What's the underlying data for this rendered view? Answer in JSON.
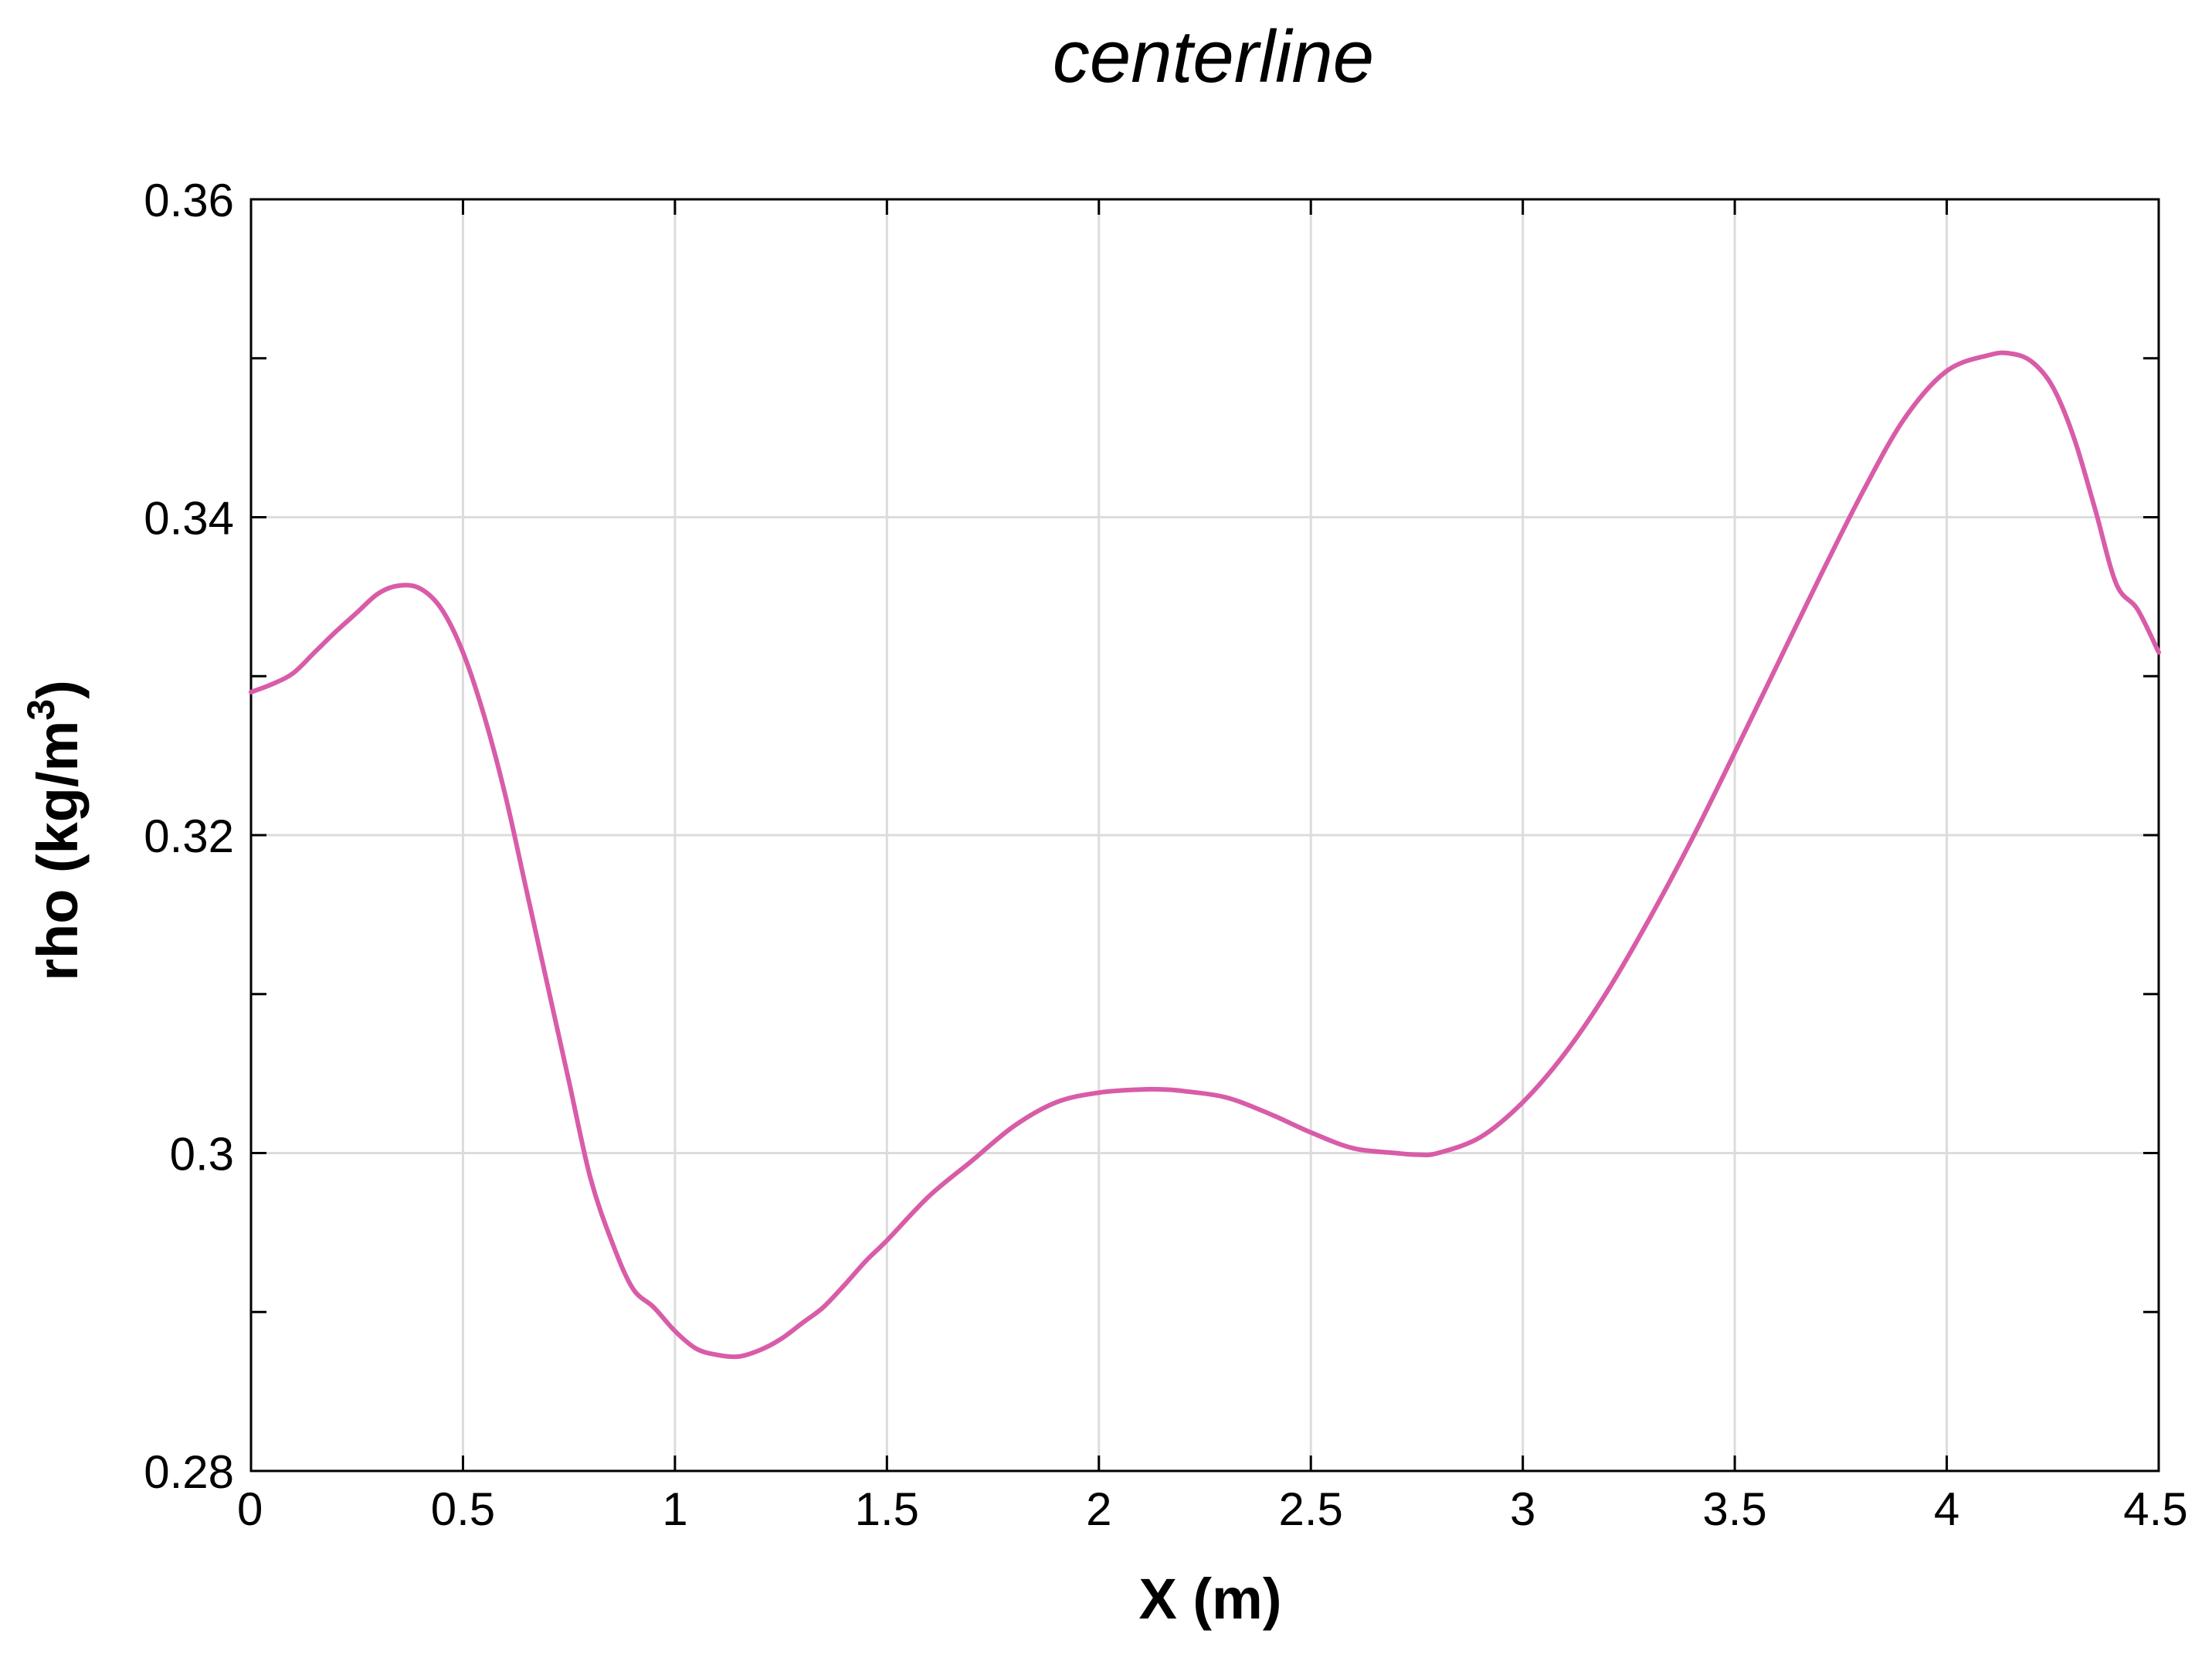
{
  "chart_data": {
    "type": "line",
    "title": "centerline",
    "xlabel": "X (m)",
    "ylabel": {
      "main": "rho (kg/m",
      "superscript": "3",
      "suffix": ")"
    },
    "xlim": [
      0,
      4.5
    ],
    "ylim": [
      0.28,
      0.36
    ],
    "x_ticks": [
      0,
      0.5,
      1,
      1.5,
      2,
      2.5,
      3,
      3.5,
      4,
      4.5
    ],
    "x_tick_labels": [
      "0",
      "0.5",
      "1",
      "1.5",
      "2",
      "2.5",
      "3",
      "3.5",
      "4",
      "4.5"
    ],
    "y_ticks": [
      0.28,
      0.29,
      0.3,
      0.31,
      0.32,
      0.33,
      0.34,
      0.35,
      0.36
    ],
    "y_tick_labels": [
      "0.28",
      "",
      "0.3",
      "",
      "0.32",
      "",
      "0.34",
      "",
      "0.36"
    ],
    "grid": true,
    "series": [
      {
        "color": "#d85ca8",
        "x": [
          0,
          0.05,
          0.1,
          0.15,
          0.2,
          0.25,
          0.3,
          0.35,
          0.4,
          0.45,
          0.5,
          0.55,
          0.6,
          0.65,
          0.7,
          0.75,
          0.8,
          0.85,
          0.9,
          0.95,
          1.0,
          1.05,
          1.1,
          1.15,
          1.2,
          1.25,
          1.3,
          1.35,
          1.4,
          1.45,
          1.5,
          1.6,
          1.7,
          1.8,
          1.9,
          2.0,
          2.1,
          2.15,
          2.2,
          2.3,
          2.4,
          2.5,
          2.6,
          2.7,
          2.75,
          2.8,
          2.9,
          3.0,
          3.1,
          3.2,
          3.3,
          3.4,
          3.5,
          3.6,
          3.7,
          3.8,
          3.9,
          4.0,
          4.1,
          4.15,
          4.2,
          4.25,
          4.3,
          4.35,
          4.4,
          4.45,
          4.5
        ],
        "y": [
          0.329,
          0.3295,
          0.3302,
          0.3315,
          0.3328,
          0.334,
          0.3352,
          0.3357,
          0.3355,
          0.3342,
          0.3315,
          0.3275,
          0.3225,
          0.3165,
          0.3105,
          0.3045,
          0.2985,
          0.2945,
          0.2915,
          0.2903,
          0.2888,
          0.2877,
          0.2873,
          0.2872,
          0.2876,
          0.2883,
          0.2893,
          0.2903,
          0.2917,
          0.2932,
          0.2945,
          0.2973,
          0.2995,
          0.3017,
          0.3032,
          0.3038,
          0.304,
          0.304,
          0.3039,
          0.3035,
          0.3025,
          0.3013,
          0.3003,
          0.3,
          0.2999,
          0.3,
          0.301,
          0.3032,
          0.3063,
          0.3102,
          0.3148,
          0.3198,
          0.3252,
          0.3307,
          0.3362,
          0.3415,
          0.3462,
          0.3492,
          0.3502,
          0.3503,
          0.3498,
          0.3482,
          0.345,
          0.3405,
          0.3358,
          0.3342,
          0.3315
        ]
      }
    ]
  }
}
